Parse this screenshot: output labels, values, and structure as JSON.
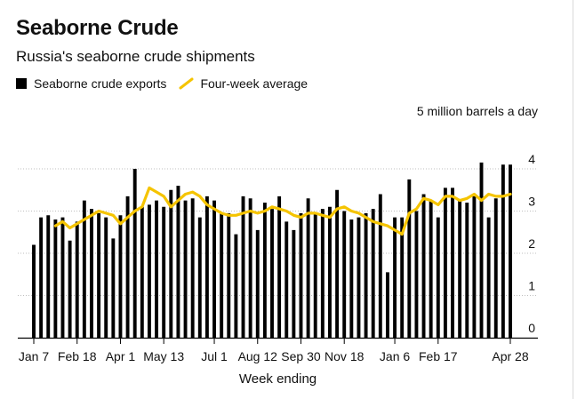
{
  "header": {
    "title": "Seaborne Crude",
    "subtitle": "Russia's seaborne crude shipments"
  },
  "legend": {
    "bars_label": "Seaborne crude exports",
    "line_label": "Four-week average"
  },
  "unit_label": "5 million barrels a day",
  "colors": {
    "bars": "#000000",
    "line": "#f5c400",
    "gridlines": "#bfbfbf",
    "axis": "#000000"
  },
  "chart_data": {
    "type": "bar",
    "title": "Seaborne Crude",
    "subtitle": "Russia's seaborne crude shipments",
    "xlabel": "Week ending",
    "ylabel": "5 million barrels a day",
    "ylim": [
      0,
      5
    ],
    "yticks": [
      0,
      1,
      2,
      3,
      4
    ],
    "grid": true,
    "legend_position": "top-left",
    "x_tick_labels": [
      {
        "index": 0,
        "label": "Jan 7"
      },
      {
        "index": 6,
        "label": "Feb 18"
      },
      {
        "index": 12,
        "label": "Apr 1"
      },
      {
        "index": 18,
        "label": "May 13"
      },
      {
        "index": 25,
        "label": "Jul 1"
      },
      {
        "index": 31,
        "label": "Aug 12"
      },
      {
        "index": 37,
        "label": "Sep 30"
      },
      {
        "index": 43,
        "label": "Nov 18"
      },
      {
        "index": 50,
        "label": "Jan 6"
      },
      {
        "index": 56,
        "label": "Feb 17"
      },
      {
        "index": 66,
        "label": "Apr 28"
      }
    ],
    "series": [
      {
        "name": "Seaborne crude exports",
        "type": "bar",
        "values": [
          2.2,
          2.85,
          2.9,
          2.8,
          2.85,
          2.3,
          2.75,
          3.25,
          3.05,
          2.95,
          2.85,
          2.35,
          2.9,
          3.35,
          4.0,
          3.1,
          3.15,
          3.25,
          3.1,
          3.5,
          3.6,
          3.25,
          3.3,
          2.85,
          3.35,
          3.25,
          2.95,
          2.95,
          2.45,
          3.35,
          3.3,
          2.55,
          3.2,
          3.05,
          3.35,
          2.75,
          2.55,
          2.95,
          3.3,
          2.95,
          3.05,
          3.1,
          3.5,
          3.0,
          2.8,
          2.85,
          2.95,
          3.05,
          3.4,
          1.55,
          2.85,
          2.85,
          3.75,
          3.0,
          3.4,
          3.25,
          2.85,
          3.55,
          3.55,
          3.25,
          3.2,
          3.35,
          4.15,
          2.85,
          3.3,
          4.1,
          4.1
        ]
      },
      {
        "name": "Four-week average",
        "type": "line",
        "values": [
          null,
          null,
          null,
          2.65,
          2.75,
          2.6,
          2.7,
          2.8,
          2.9,
          3.0,
          2.95,
          2.9,
          2.7,
          2.85,
          3.0,
          3.1,
          3.55,
          3.45,
          3.35,
          3.1,
          3.25,
          3.4,
          3.45,
          3.35,
          3.15,
          3.05,
          2.95,
          2.9,
          2.9,
          2.95,
          3.0,
          2.95,
          3.0,
          3.1,
          3.05,
          3.0,
          2.9,
          2.85,
          2.95,
          2.95,
          2.9,
          2.85,
          3.05,
          3.1,
          3.0,
          2.95,
          2.85,
          2.75,
          2.7,
          2.65,
          2.55,
          2.45,
          2.95,
          3.05,
          3.3,
          3.25,
          3.15,
          3.35,
          3.35,
          3.25,
          3.3,
          3.4,
          3.25,
          3.4,
          3.35,
          3.35,
          3.4
        ]
      }
    ]
  }
}
